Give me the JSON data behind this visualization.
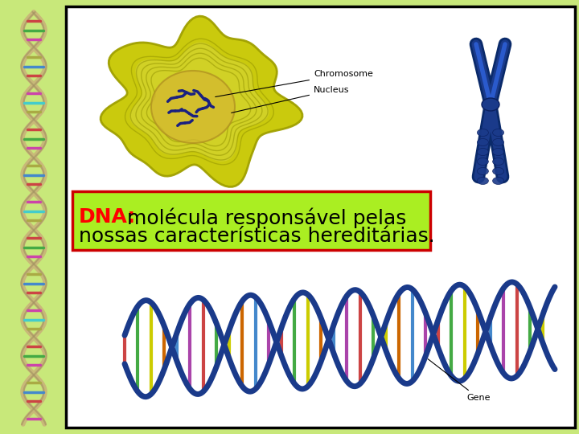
{
  "bg_color": "#c8e87a",
  "panel_bg": "#ffffff",
  "panel_border_color": "#000000",
  "text_box_color": "#aaee22",
  "text_box_border": "#cc0000",
  "text_line1_red": "DNA:",
  "text_line1_black": " molécula responsável pelas",
  "text_line2": "nossas características hereditárias.",
  "text_color_red": "#ff0000",
  "text_color_black": "#000000",
  "text_fontsize": 18,
  "label_chromosome": "Chromosome",
  "label_nucleus": "Nucleus",
  "label_gene": "Gene",
  "fig_width": 7.2,
  "fig_height": 5.4,
  "dpi": 100
}
